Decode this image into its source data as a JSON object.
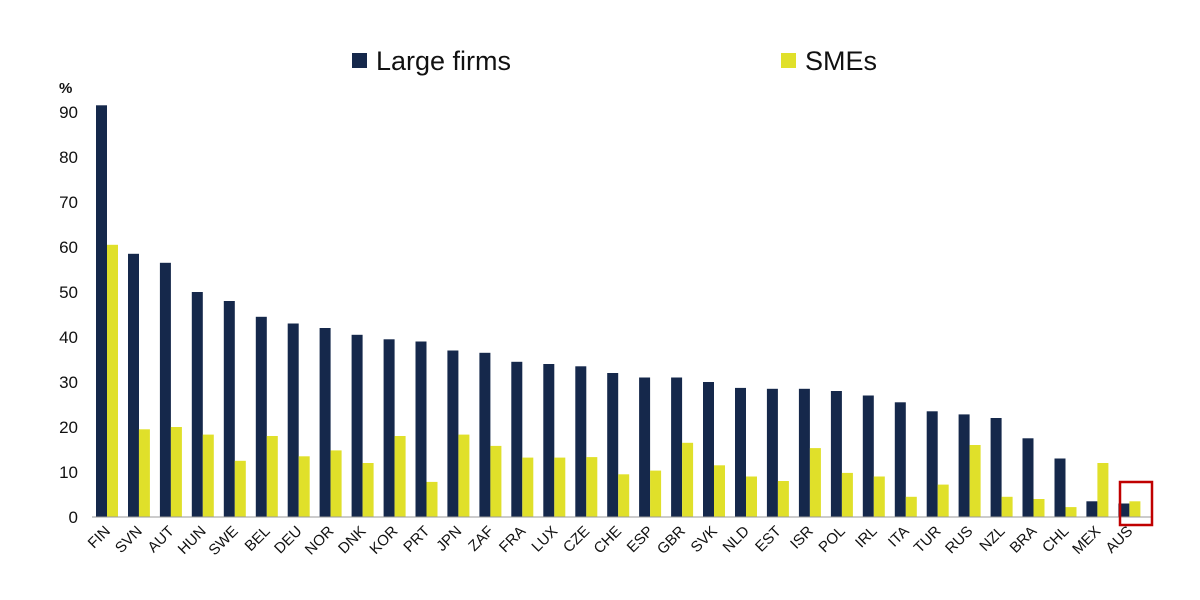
{
  "chart_data": {
    "type": "bar",
    "unit_label": "%",
    "ylim": [
      0,
      95
    ],
    "yticks": [
      "0",
      "10",
      "20",
      "30",
      "40",
      "50",
      "60",
      "70",
      "80",
      "90"
    ],
    "grid": false,
    "legend_position": "top",
    "categories": [
      "FIN",
      "SVN",
      "AUT",
      "HUN",
      "SWE",
      "BEL",
      "DEU",
      "NOR",
      "DNK",
      "KOR",
      "PRT",
      "JPN",
      "ZAF",
      "FRA",
      "LUX",
      "CZE",
      "CHE",
      "ESP",
      "GBR",
      "SVK",
      "NLD",
      "EST",
      "ISR",
      "POL",
      "IRL",
      "ITA",
      "TUR",
      "RUS",
      "NZL",
      "BRA",
      "CHL",
      "MEX",
      "AUS"
    ],
    "series": [
      {
        "name": "Large firms",
        "color": "#15284b",
        "values": [
          91.5,
          58.5,
          56.5,
          50,
          48,
          44.5,
          43,
          42,
          40.5,
          39.5,
          39,
          37,
          36.5,
          34.5,
          34,
          33.5,
          32,
          31,
          31,
          30,
          28.7,
          28.5,
          28.5,
          28,
          27,
          25.5,
          23.5,
          22.8,
          22,
          17.5,
          13,
          3.5,
          3
        ]
      },
      {
        "name": "SMEs",
        "color": "#e0e02a",
        "values": [
          60.5,
          19.5,
          20,
          18.3,
          12.5,
          18,
          13.5,
          14.8,
          12,
          18,
          7.8,
          18.3,
          15.8,
          13.2,
          13.2,
          13.3,
          9.5,
          10.3,
          16.5,
          11.5,
          9,
          8,
          15.3,
          9.8,
          9,
          4.5,
          7.2,
          16,
          4.5,
          4,
          2.2,
          12,
          3.5
        ]
      }
    ],
    "highlight": {
      "category": "AUS",
      "color": "#c00000"
    }
  }
}
